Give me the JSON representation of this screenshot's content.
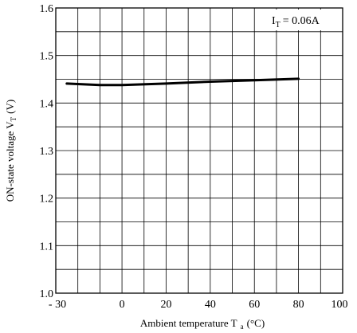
{
  "chart_data": {
    "type": "line",
    "xlabel": "Ambient temperature T",
    "xlabel_sub": "a",
    "xlabel_unit": "(°C)",
    "ylabel": "ON-state voltage V",
    "ylabel_sub": "T",
    "ylabel_unit": "(V)",
    "xlim": [
      -30,
      100
    ],
    "ylim": [
      1.0,
      1.6
    ],
    "x_ticks": [
      -30,
      0,
      20,
      40,
      60,
      80,
      100
    ],
    "x_tick_labels": [
      "- 30",
      "0",
      "20",
      "40",
      "60",
      "80",
      "100"
    ],
    "y_ticks": [
      1.0,
      1.1,
      1.2,
      1.3,
      1.4,
      1.5,
      1.6
    ],
    "y_tick_labels": [
      "1.0",
      "1.1",
      "1.2",
      "1.3",
      "1.4",
      "1.5",
      "1.6"
    ],
    "grid": true,
    "annotation": {
      "main": "I",
      "sub": "T",
      "rest": "= 0.06A"
    },
    "series": [
      {
        "x": [
          -25,
          -10,
          0,
          20,
          40,
          60,
          80
        ],
        "y": [
          1.441,
          1.438,
          1.438,
          1.441,
          1.445,
          1.448,
          1.451
        ]
      }
    ]
  }
}
